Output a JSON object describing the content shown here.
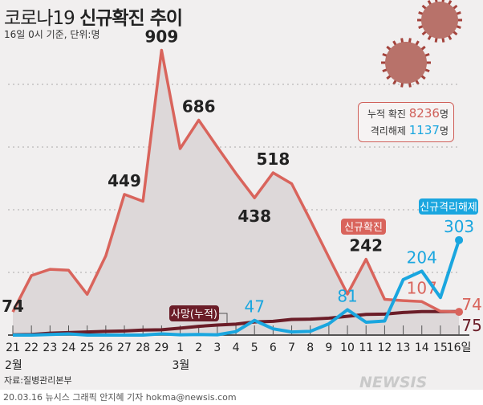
{
  "title_light": "코로나19",
  "title_bold": "신규확진 추이",
  "subtitle": "16일 0시 기준, 단위:명",
  "legend": {
    "confirmed_label": "누적 확진",
    "confirmed_value": "8236",
    "released_label": "격리해제",
    "released_value": "1137",
    "unit": "명"
  },
  "source": "자료:질병관리본부",
  "footer": "20.03.16 뉴시스 그래픽 안지혜 기자 hokma@newsis.com",
  "watermark": "NEWSIS",
  "chart_data": {
    "type": "line",
    "x": [
      "21",
      "22",
      "23",
      "24",
      "25",
      "26",
      "27",
      "28",
      "29",
      "1",
      "2",
      "3",
      "4",
      "5",
      "6",
      "7",
      "8",
      "9",
      "10",
      "11",
      "12",
      "13",
      "14",
      "15",
      "16일"
    ],
    "month_labels": [
      {
        "index": 0,
        "label": "2월"
      },
      {
        "index": 9,
        "label": "3월"
      }
    ],
    "ylim": [
      0,
      1000
    ],
    "grid": "dotted horizontal",
    "colors": {
      "confirmed": "#d9645c",
      "released": "#1aa6df",
      "deaths": "#6b1d28",
      "fill": "#ddd8d9"
    },
    "series": [
      {
        "name": "신규확진",
        "values": [
          74,
          190,
          210,
          207,
          130,
          253,
          449,
          427,
          909,
          595,
          686,
          600,
          516,
          438,
          518,
          483,
          367,
          248,
          131,
          242,
          114,
          110,
          107,
          76,
          74
        ],
        "labels": {
          "0": "74",
          "6": "449",
          "8": "909",
          "10": "686",
          "13": "438",
          "14": "518",
          "19": "242",
          "22": "107",
          "24": "74"
        }
      },
      {
        "name": "신규격리해제",
        "values": [
          0,
          0,
          2,
          4,
          0,
          0,
          0,
          0,
          4,
          1,
          2,
          1,
          11,
          47,
          20,
          10,
          12,
          36,
          81,
          41,
          45,
          177,
          204,
          120,
          303
        ],
        "labels": {
          "13": "47",
          "18": "81",
          "22": "204",
          "24": "303"
        }
      },
      {
        "name": "사망(누적)",
        "values": [
          1,
          2,
          6,
          8,
          10,
          12,
          13,
          16,
          17,
          22,
          28,
          32,
          35,
          42,
          44,
          50,
          51,
          54,
          60,
          66,
          67,
          72,
          75,
          75,
          75
        ],
        "labels": {
          "24": "75"
        }
      }
    ]
  }
}
